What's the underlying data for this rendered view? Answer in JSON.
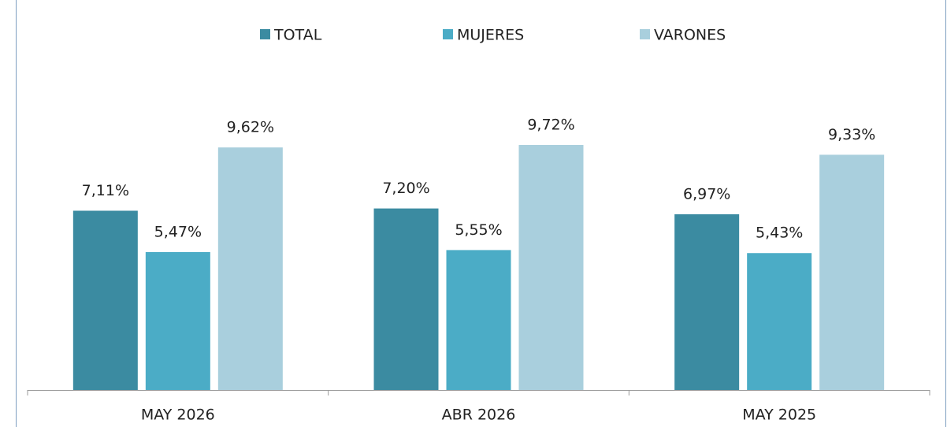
{
  "chart_data": {
    "type": "bar",
    "categories": [
      "MAY 2026",
      "ABR 2026",
      "MAY 2025"
    ],
    "series": [
      {
        "name": "TOTAL",
        "color": "#3b8ba1",
        "values": [
          7.11,
          7.2,
          6.97
        ],
        "value_labels": [
          "7,11%",
          "7,20%",
          "6,97%"
        ]
      },
      {
        "name": "MUJERES",
        "color": "#4bacc6",
        "values": [
          5.47,
          5.55,
          5.43
        ],
        "value_labels": [
          "5,47%",
          "5,55%",
          "5,43%"
        ]
      },
      {
        "name": "VARONES",
        "color": "#a9cfdd",
        "values": [
          9.62,
          9.72,
          9.33
        ],
        "value_labels": [
          "9,62%",
          "9,72%",
          "9,33%"
        ]
      }
    ],
    "legend": "top"
  }
}
